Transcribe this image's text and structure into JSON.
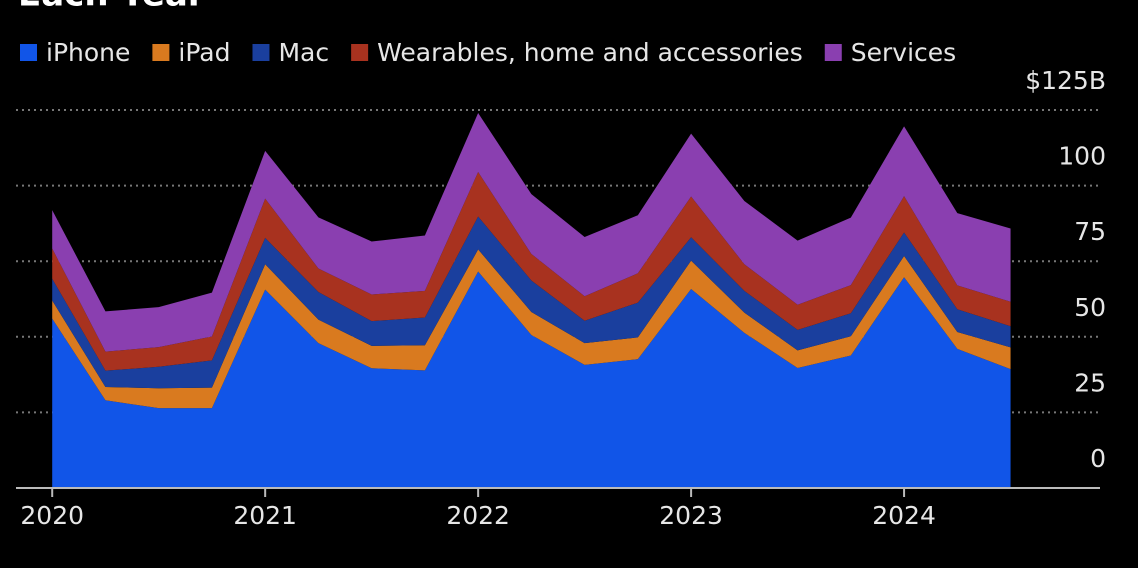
{
  "chart_data": {
    "type": "stacked-area",
    "title": "Each Year",
    "x": [
      2020,
      2020.25,
      2020.5,
      2020.75,
      2021,
      2021.25,
      2021.5,
      2021.75,
      2022,
      2022.25,
      2022.5,
      2022.75,
      2023,
      2023.25,
      2023.5,
      2023.75,
      2024,
      2024.25,
      2024.5
    ],
    "xlim": [
      2019.83,
      2024.92
    ],
    "xticks": [
      2020,
      2021,
      2022,
      2023,
      2024
    ],
    "ylim": [
      0,
      125
    ],
    "yticks": [
      0,
      25,
      50,
      75,
      100,
      {
        "value": 125,
        "label": "$125B"
      }
    ],
    "grid": true,
    "series": [
      {
        "name": "iPhone",
        "color": "#1155e8",
        "values": [
          56.0,
          29.0,
          26.4,
          26.4,
          65.6,
          47.9,
          39.6,
          38.9,
          71.6,
          50.6,
          40.7,
          42.6,
          65.8,
          51.3,
          39.7,
          43.8,
          69.7,
          46.0,
          39.3
        ]
      },
      {
        "name": "iPad",
        "color": "#d97a1f",
        "values": [
          6.0,
          4.4,
          6.6,
          6.8,
          8.4,
          7.8,
          7.4,
          8.3,
          7.3,
          7.6,
          7.2,
          7.2,
          9.4,
          6.7,
          5.8,
          6.4,
          7.0,
          5.6,
          7.2
        ]
      },
      {
        "name": "Mac",
        "color": "#1a3f9e",
        "values": [
          7.2,
          5.4,
          7.1,
          9.0,
          8.7,
          9.1,
          8.2,
          9.2,
          10.9,
          10.4,
          7.4,
          11.5,
          7.7,
          7.2,
          6.8,
          7.6,
          7.8,
          7.5,
          7.0
        ]
      },
      {
        "name": "Wearables, home and accessories",
        "color": "#a8321f",
        "values": [
          10.0,
          6.3,
          6.5,
          7.9,
          13.0,
          7.8,
          8.8,
          8.8,
          14.7,
          8.8,
          8.1,
          9.7,
          13.5,
          8.8,
          8.3,
          9.3,
          12.0,
          7.9,
          8.1
        ]
      },
      {
        "name": "Services",
        "color": "#8a3fb0",
        "values": [
          12.7,
          13.3,
          13.2,
          14.5,
          15.8,
          16.9,
          17.5,
          18.3,
          19.5,
          19.8,
          19.6,
          19.2,
          20.8,
          20.9,
          21.2,
          22.3,
          23.1,
          23.9,
          24.2
        ]
      }
    ]
  }
}
